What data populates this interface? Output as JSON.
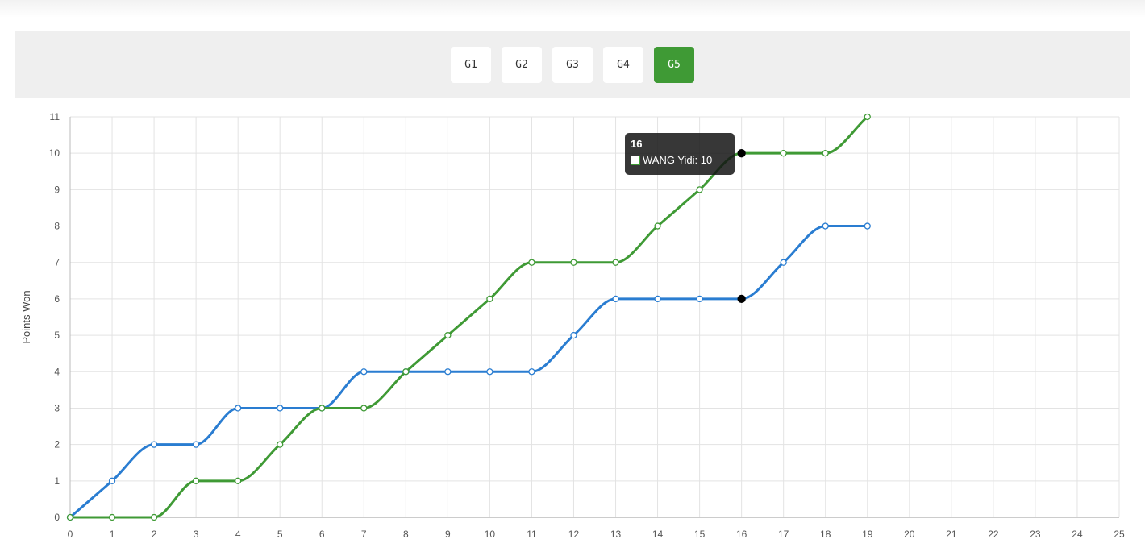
{
  "games": [
    {
      "label": "G1",
      "active": false
    },
    {
      "label": "G2",
      "active": false
    },
    {
      "label": "G3",
      "active": false
    },
    {
      "label": "G4",
      "active": false
    },
    {
      "label": "G5",
      "active": true
    }
  ],
  "tooltip": {
    "title": "16",
    "label": "WANG Yidi: 10"
  },
  "chart_data": {
    "type": "line",
    "ylabel": "Points Won",
    "xlabel": "",
    "xlim": [
      0,
      25
    ],
    "ylim": [
      0,
      11
    ],
    "x_ticks": [
      0,
      1,
      2,
      3,
      4,
      5,
      6,
      7,
      8,
      9,
      10,
      11,
      12,
      13,
      14,
      15,
      16,
      17,
      18,
      19,
      20,
      21,
      22,
      23,
      24,
      25
    ],
    "y_ticks": [
      0,
      1,
      2,
      3,
      4,
      5,
      6,
      7,
      8,
      9,
      10,
      11
    ],
    "grid": true,
    "series": [
      {
        "name": "",
        "color": "#2a7dd1",
        "x": [
          0,
          1,
          2,
          3,
          4,
          5,
          6,
          7,
          8,
          9,
          10,
          11,
          12,
          13,
          14,
          15,
          16,
          17,
          18,
          19
        ],
        "values": [
          0,
          1,
          2,
          2,
          3,
          3,
          3,
          4,
          4,
          4,
          4,
          4,
          5,
          6,
          6,
          6,
          6,
          7,
          8,
          8
        ]
      },
      {
        "name": "WANG Yidi",
        "color": "#3f9a35",
        "x": [
          0,
          1,
          2,
          3,
          4,
          5,
          6,
          7,
          8,
          9,
          10,
          11,
          12,
          13,
          14,
          15,
          16,
          17,
          18,
          19
        ],
        "values": [
          0,
          0,
          0,
          1,
          1,
          2,
          3,
          3,
          4,
          5,
          6,
          7,
          7,
          7,
          8,
          9,
          10,
          10,
          10,
          11
        ]
      }
    ],
    "hover_x": 16
  }
}
